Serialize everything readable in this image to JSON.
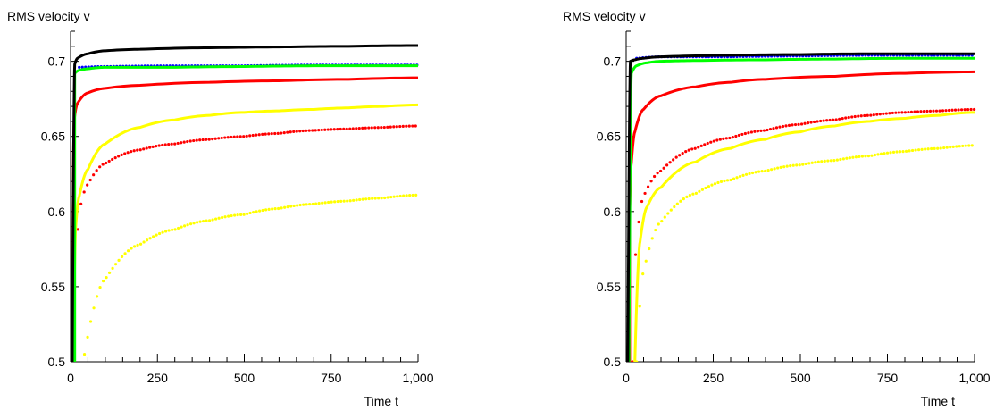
{
  "chart_data": [
    {
      "type": "line",
      "title": "",
      "xlabel": "Time t",
      "ylabel": "RMS velocity v",
      "xlim": [
        0,
        1000
      ],
      "ylim": [
        0.5,
        0.72
      ],
      "x_ticks": [
        0,
        250,
        500,
        750,
        1000
      ],
      "x_tick_labels": [
        "0",
        "250",
        "500",
        "750",
        "1,000"
      ],
      "y_ticks": [
        0.5,
        0.55,
        0.6,
        0.65,
        0.7
      ],
      "y_tick_labels": [
        "0.5",
        "0.55",
        "0.6",
        "0.65",
        "0.7"
      ],
      "grid": false,
      "series": [
        {
          "color": "#ffff00",
          "style": "dotted",
          "x": [
            40,
            100,
            200,
            300,
            400,
            500,
            600,
            700,
            800,
            900,
            1000
          ],
          "y": [
            0.505,
            0.555,
            0.578,
            0.588,
            0.594,
            0.598,
            0.602,
            0.605,
            0.607,
            0.609,
            0.611
          ]
        },
        {
          "color": "#ff0000",
          "style": "dotted",
          "x": [
            12,
            20,
            30,
            50,
            100,
            200,
            300,
            400,
            500,
            600,
            700,
            800,
            900,
            1000
          ],
          "y": [
            0.5,
            0.585,
            0.605,
            0.618,
            0.632,
            0.641,
            0.645,
            0.648,
            0.65,
            0.652,
            0.654,
            0.655,
            0.656,
            0.657
          ]
        },
        {
          "color": "#ffff00",
          "style": "solid",
          "x": [
            8,
            15,
            25,
            50,
            100,
            200,
            300,
            400,
            500,
            600,
            700,
            800,
            900,
            1000
          ],
          "y": [
            0.5,
            0.59,
            0.61,
            0.628,
            0.645,
            0.656,
            0.661,
            0.664,
            0.666,
            0.667,
            0.668,
            0.669,
            0.67,
            0.671
          ]
        },
        {
          "color": "#ff0000",
          "style": "solid",
          "x": [
            5,
            10,
            20,
            50,
            100,
            200,
            400,
            600,
            800,
            1000
          ],
          "y": [
            0.5,
            0.66,
            0.672,
            0.679,
            0.682,
            0.684,
            0.686,
            0.687,
            0.688,
            0.689
          ]
        },
        {
          "color": "#0000ff",
          "style": "dotted",
          "x": [
            25,
            100,
            300,
            500,
            700,
            900,
            1000
          ],
          "y": [
            0.696,
            0.6965,
            0.697,
            0.697,
            0.6975,
            0.6975,
            0.6975
          ]
        },
        {
          "color": "#00ff00",
          "style": "solid",
          "x": [
            12,
            25,
            50,
            100,
            300,
            500,
            700,
            1000
          ],
          "y": [
            0.692,
            0.694,
            0.695,
            0.696,
            0.696,
            0.6965,
            0.697,
            0.697
          ]
        },
        {
          "color": "#000000",
          "style": "solid",
          "x": [
            5,
            12,
            20,
            50,
            100,
            200,
            400,
            600,
            800,
            1000
          ],
          "y": [
            0.5,
            0.698,
            0.702,
            0.705,
            0.707,
            0.708,
            0.709,
            0.7095,
            0.71,
            0.7105
          ]
        }
      ]
    },
    {
      "type": "line",
      "title": "",
      "xlabel": "Time t",
      "ylabel": "RMS velocity v",
      "xlim": [
        0,
        1000
      ],
      "ylim": [
        0.5,
        0.72
      ],
      "x_ticks": [
        0,
        250,
        500,
        750,
        1000
      ],
      "x_tick_labels": [
        "0",
        "250",
        "500",
        "750",
        "1,000"
      ],
      "y_ticks": [
        0.5,
        0.55,
        0.6,
        0.65,
        0.7
      ],
      "y_tick_labels": [
        "0.5",
        "0.55",
        "0.6",
        "0.65",
        "0.7"
      ],
      "grid": false,
      "series": [
        {
          "color": "#ffff00",
          "style": "dotted",
          "x": [
            30,
            50,
            100,
            200,
            300,
            400,
            500,
            600,
            700,
            800,
            900,
            1000
          ],
          "y": [
            0.5,
            0.56,
            0.593,
            0.612,
            0.621,
            0.627,
            0.631,
            0.634,
            0.637,
            0.64,
            0.642,
            0.644
          ]
        },
        {
          "color": "#ff0000",
          "style": "dotted",
          "x": [
            18,
            30,
            50,
            100,
            200,
            300,
            400,
            500,
            600,
            700,
            800,
            900,
            1000
          ],
          "y": [
            0.5,
            0.58,
            0.61,
            0.627,
            0.642,
            0.649,
            0.654,
            0.658,
            0.661,
            0.664,
            0.666,
            0.667,
            0.668
          ]
        },
        {
          "color": "#ffff00",
          "style": "solid",
          "x": [
            25,
            40,
            60,
            100,
            200,
            300,
            400,
            500,
            600,
            700,
            800,
            900,
            1000
          ],
          "y": [
            0.5,
            0.58,
            0.603,
            0.616,
            0.633,
            0.642,
            0.648,
            0.653,
            0.657,
            0.66,
            0.662,
            0.664,
            0.666
          ]
        },
        {
          "color": "#ff0000",
          "style": "solid",
          "x": [
            10,
            15,
            25,
            50,
            100,
            200,
            300,
            400,
            600,
            800,
            1000
          ],
          "y": [
            0.6,
            0.632,
            0.653,
            0.668,
            0.677,
            0.683,
            0.686,
            0.688,
            0.69,
            0.692,
            0.693
          ]
        },
        {
          "color": "#0000ff",
          "style": "dotted",
          "x": [
            30,
            100,
            300,
            500,
            700,
            1000
          ],
          "y": [
            0.702,
            0.703,
            0.703,
            0.7035,
            0.704,
            0.704
          ]
        },
        {
          "color": "#00ff00",
          "style": "solid",
          "x": [
            8,
            15,
            30,
            60,
            100,
            200,
            400,
            600,
            800,
            1000
          ],
          "y": [
            0.5,
            0.692,
            0.697,
            0.699,
            0.7,
            0.7005,
            0.701,
            0.7015,
            0.702,
            0.702
          ]
        },
        {
          "color": "#000000",
          "style": "solid",
          "x": [
            5,
            12,
            25,
            50,
            100,
            300,
            500,
            700,
            1000
          ],
          "y": [
            0.5,
            0.7,
            0.701,
            0.702,
            0.703,
            0.704,
            0.7045,
            0.705,
            0.705
          ]
        }
      ]
    }
  ]
}
